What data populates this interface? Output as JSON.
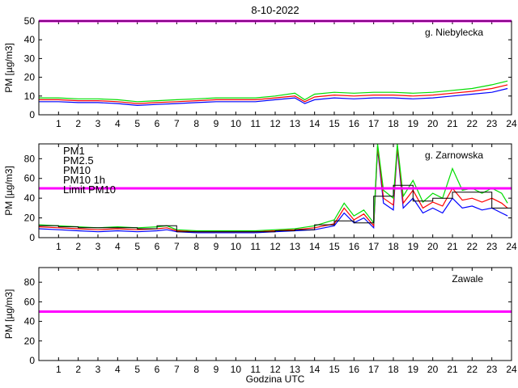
{
  "figure": {
    "title": "8-10-2022",
    "xlabel": "Godzina UTC"
  },
  "colors": {
    "pm1": "#0000ff",
    "pm25": "#ff0000",
    "pm10": "#00dd00",
    "pm10_1h": "#000000",
    "limit": "#ff00ff"
  },
  "chart_data": [
    {
      "type": "line",
      "station": "g. Niebylecka",
      "ylabel": "PM [µg/m3]",
      "xlim": [
        0,
        24
      ],
      "ylim": [
        0,
        50
      ],
      "yticks": [
        0,
        10,
        20,
        30,
        40,
        50
      ],
      "xticks": [
        1,
        2,
        3,
        4,
        5,
        6,
        7,
        8,
        9,
        10,
        11,
        12,
        13,
        14,
        15,
        16,
        17,
        18,
        19,
        20,
        21,
        22,
        23,
        24
      ],
      "limit_pm10": 50,
      "legend": [],
      "series": [
        {
          "name": "PM1",
          "x": [
            0,
            1,
            2,
            3,
            4,
            5,
            6,
            7,
            8,
            9,
            10,
            11,
            12,
            13,
            13.5,
            14,
            15,
            16,
            17,
            18,
            19,
            20,
            21,
            22,
            23,
            23.8
          ],
          "y": [
            7,
            7,
            6.5,
            6.5,
            6,
            5,
            5.5,
            6,
            6.5,
            7,
            7,
            7,
            8,
            9,
            6,
            8,
            9,
            8.5,
            9,
            9,
            8.5,
            9,
            10,
            11,
            12,
            14
          ]
        },
        {
          "name": "PM2.5",
          "x": [
            0,
            1,
            2,
            3,
            4,
            5,
            6,
            7,
            8,
            9,
            10,
            11,
            12,
            13,
            13.5,
            14,
            15,
            16,
            17,
            18,
            19,
            20,
            21,
            22,
            23,
            23.8
          ],
          "y": [
            8,
            8,
            7.5,
            7.5,
            7,
            6,
            6.5,
            7,
            7.5,
            8,
            8,
            8,
            9,
            10,
            7,
            9.5,
            10.5,
            10,
            10.5,
            10.5,
            10,
            10.5,
            11.5,
            12.5,
            14,
            16
          ]
        },
        {
          "name": "PM10",
          "x": [
            0,
            1,
            2,
            3,
            4,
            5,
            6,
            7,
            8,
            9,
            10,
            11,
            12,
            13,
            13.5,
            14,
            15,
            16,
            17,
            18,
            19,
            20,
            21,
            22,
            23,
            23.8
          ],
          "y": [
            9,
            9,
            8.5,
            8.5,
            8,
            7,
            7.5,
            8,
            8.5,
            9,
            9,
            9,
            10,
            11.5,
            8,
            11,
            12,
            11.5,
            12,
            12,
            11.5,
            12,
            13,
            14,
            16,
            18
          ]
        }
      ]
    },
    {
      "type": "line",
      "station": "g. Zarnowska",
      "ylabel": "PM [µg/m3]",
      "xlim": [
        0,
        24
      ],
      "ylim": [
        0,
        95
      ],
      "yticks": [
        0,
        20,
        40,
        60,
        80
      ],
      "xticks": [
        1,
        2,
        3,
        4,
        5,
        6,
        7,
        8,
        9,
        10,
        11,
        12,
        13,
        14,
        15,
        16,
        17,
        18,
        19,
        20,
        21,
        22,
        23,
        24
      ],
      "limit_pm10": 50,
      "legend": [
        "PM1",
        "PM2.5",
        "PM10",
        "PM10 1h",
        "Limit PM10"
      ],
      "legend_placement": "top-left",
      "series": [
        {
          "name": "PM1",
          "x": [
            0,
            1,
            2,
            3,
            4,
            5,
            6,
            6.5,
            7,
            8,
            9,
            10,
            11,
            12,
            13,
            14,
            14.5,
            15,
            15.5,
            16,
            16.5,
            17,
            17.2,
            17.5,
            18,
            18.2,
            18.5,
            19,
            19.5,
            20,
            20.5,
            21,
            21.5,
            22,
            22.5,
            23,
            23.5,
            23.8
          ],
          "y": [
            9,
            8,
            7,
            6,
            7,
            6,
            7,
            8,
            6,
            5,
            5,
            5,
            5,
            6,
            7,
            8,
            10,
            12,
            25,
            15,
            20,
            10,
            90,
            35,
            28,
            90,
            30,
            40,
            25,
            30,
            25,
            40,
            30,
            32,
            28,
            30,
            25,
            22
          ]
        },
        {
          "name": "PM2.5",
          "x": [
            0,
            1,
            2,
            3,
            4,
            5,
            6,
            6.5,
            7,
            8,
            9,
            10,
            11,
            12,
            13,
            14,
            14.5,
            15,
            15.5,
            16,
            16.5,
            17,
            17.2,
            17.5,
            18,
            18.2,
            18.5,
            19,
            19.5,
            20,
            20.5,
            21,
            21.5,
            22,
            22.5,
            23,
            23.5,
            23.8
          ],
          "y": [
            11,
            10,
            9,
            8,
            9,
            8,
            9,
            10,
            7,
            6,
            6,
            6,
            6,
            7,
            8,
            10,
            12,
            14,
            30,
            18,
            24,
            12,
            92,
            40,
            33,
            92,
            35,
            48,
            30,
            36,
            32,
            50,
            38,
            40,
            36,
            40,
            35,
            30
          ]
        },
        {
          "name": "PM10",
          "x": [
            0,
            1,
            2,
            3,
            4,
            5,
            6,
            6.5,
            7,
            8,
            9,
            10,
            11,
            12,
            13,
            14,
            14.5,
            15,
            15.5,
            16,
            16.5,
            17,
            17.2,
            17.5,
            18,
            18.2,
            18.5,
            19,
            19.5,
            20,
            20.5,
            21,
            21.5,
            22,
            22.5,
            23,
            23.5,
            23.8
          ],
          "y": [
            13,
            12,
            11,
            10,
            11,
            10,
            11,
            12,
            8,
            7,
            7,
            7,
            7,
            8,
            9,
            12,
            15,
            18,
            35,
            22,
            28,
            15,
            95,
            48,
            40,
            95,
            42,
            58,
            36,
            45,
            40,
            70,
            48,
            50,
            45,
            50,
            45,
            35
          ]
        },
        {
          "name": "PM10 1h",
          "step": true,
          "x": [
            0,
            1,
            2,
            3,
            4,
            5,
            6,
            7,
            8,
            9,
            10,
            11,
            12,
            13,
            14,
            15,
            16,
            17,
            18,
            19,
            20,
            21,
            22,
            23,
            24
          ],
          "y": [
            12,
            11,
            10,
            10,
            10,
            9,
            12,
            6,
            6,
            6,
            6,
            6,
            7,
            8,
            13,
            17,
            15,
            42,
            53,
            37,
            40,
            46,
            46,
            30,
            30
          ]
        }
      ]
    },
    {
      "type": "line",
      "station": "Zawale",
      "ylabel": "PM [µg/m3]",
      "xlim": [
        0,
        24
      ],
      "ylim": [
        0,
        95
      ],
      "yticks": [
        0,
        20,
        40,
        60,
        80
      ],
      "xticks": [
        1,
        2,
        3,
        4,
        5,
        6,
        7,
        8,
        9,
        10,
        11,
        12,
        13,
        14,
        15,
        16,
        17,
        18,
        19,
        20,
        21,
        22,
        23,
        24
      ],
      "limit_pm10": 50,
      "legend": [],
      "series": []
    }
  ]
}
